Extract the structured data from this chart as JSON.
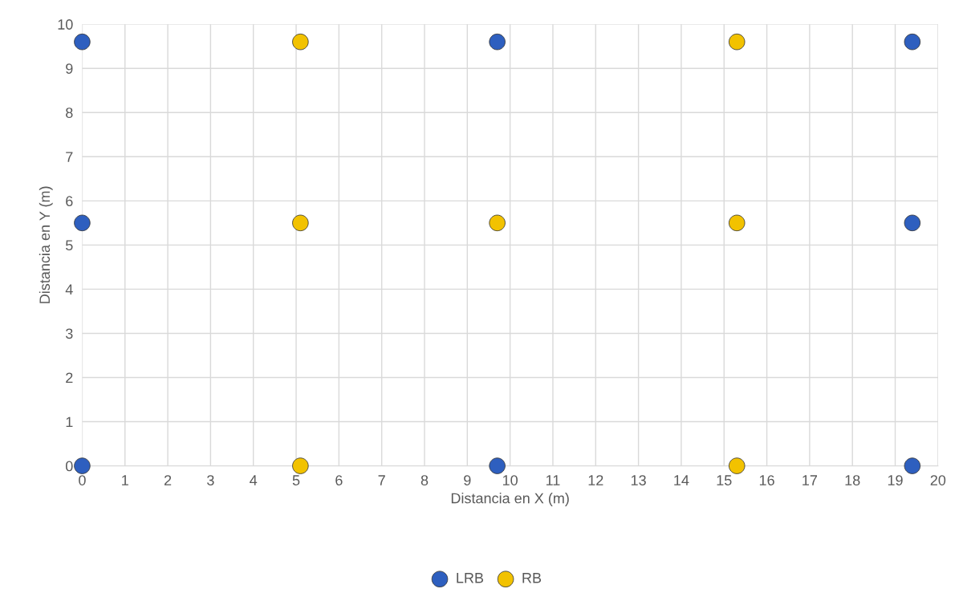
{
  "chart_data": {
    "type": "scatter",
    "xlabel": "Distancia en X (m)",
    "ylabel": "Distancia en Y (m)",
    "series": [
      {
        "name": "LRB",
        "color": "#2e5fbf",
        "x": [
          0,
          0,
          0,
          9.7,
          9.7,
          19.4,
          19.4,
          19.4
        ],
        "values": [
          0,
          5.5,
          9.6,
          0,
          9.6,
          0,
          5.5,
          9.6
        ]
      },
      {
        "name": "RB",
        "color": "#f2c200",
        "x": [
          5.1,
          5.1,
          5.1,
          9.7,
          15.3,
          15.3,
          15.3
        ],
        "values": [
          0,
          5.5,
          9.6,
          5.5,
          0,
          5.5,
          9.6
        ]
      }
    ],
    "xlim": [
      0,
      20
    ],
    "xticks": [
      0,
      1,
      2,
      3,
      4,
      5,
      6,
      7,
      8,
      9,
      10,
      11,
      12,
      13,
      14,
      15,
      16,
      17,
      18,
      19,
      20
    ],
    "ylim": [
      0,
      10
    ],
    "yticks": [
      0,
      1,
      2,
      3,
      4,
      5,
      6,
      7,
      8,
      9,
      10
    ],
    "grid": true,
    "legend": "bottom",
    "marker": "circle"
  }
}
